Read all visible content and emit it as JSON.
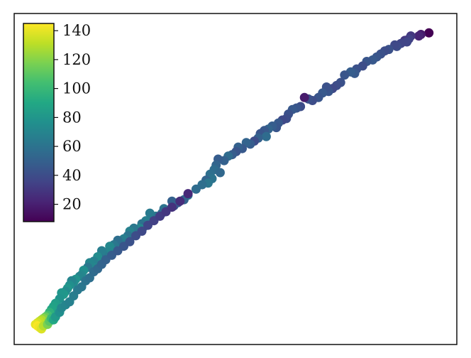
{
  "chart_data": {
    "type": "scatter",
    "title": "",
    "xlabel": "",
    "ylabel": "",
    "x_ticks_shown": false,
    "y_ticks_shown": false,
    "grid": false,
    "colormap": "viridis",
    "color_range": [
      8,
      145
    ],
    "colorbar": {
      "placement": "top-left (inset)",
      "ticks": [
        "20",
        "40",
        "60",
        "80",
        "100",
        "120",
        "140"
      ]
    },
    "series": [
      {
        "points": [
          [
            0.98,
            0.985,
            8
          ],
          [
            0.96,
            0.98,
            18
          ],
          [
            0.955,
            0.975,
            22
          ],
          [
            0.935,
            0.975,
            30
          ],
          [
            0.93,
            0.965,
            34
          ],
          [
            0.92,
            0.96,
            30
          ],
          [
            0.925,
            0.955,
            36
          ],
          [
            0.91,
            0.95,
            36
          ],
          [
            0.9,
            0.94,
            40
          ],
          [
            0.895,
            0.945,
            38
          ],
          [
            0.88,
            0.93,
            42
          ],
          [
            0.87,
            0.925,
            40
          ],
          [
            0.86,
            0.915,
            42
          ],
          [
            0.85,
            0.905,
            44
          ],
          [
            0.84,
            0.895,
            46
          ],
          [
            0.825,
            0.89,
            44
          ],
          [
            0.815,
            0.875,
            40
          ],
          [
            0.8,
            0.865,
            42
          ],
          [
            0.795,
            0.85,
            46
          ],
          [
            0.785,
            0.855,
            48
          ],
          [
            0.77,
            0.845,
            44
          ],
          [
            0.76,
            0.82,
            42
          ],
          [
            0.75,
            0.81,
            40
          ],
          [
            0.74,
            0.8,
            38
          ],
          [
            0.73,
            0.79,
            44
          ],
          [
            0.725,
            0.805,
            42
          ],
          [
            0.715,
            0.785,
            46
          ],
          [
            0.705,
            0.77,
            44
          ],
          [
            0.69,
            0.76,
            40
          ],
          [
            0.68,
            0.765,
            42
          ],
          [
            0.67,
            0.77,
            18
          ],
          [
            0.66,
            0.74,
            40
          ],
          [
            0.65,
            0.735,
            44
          ],
          [
            0.64,
            0.73,
            46
          ],
          [
            0.63,
            0.715,
            42
          ],
          [
            0.625,
            0.7,
            40
          ],
          [
            0.615,
            0.695,
            38
          ],
          [
            0.605,
            0.685,
            46
          ],
          [
            0.6,
            0.67,
            44
          ],
          [
            0.59,
            0.675,
            48
          ],
          [
            0.58,
            0.665,
            52
          ],
          [
            0.57,
            0.66,
            46
          ],
          [
            0.56,
            0.65,
            44
          ],
          [
            0.575,
            0.64,
            56
          ],
          [
            0.555,
            0.635,
            50
          ],
          [
            0.545,
            0.625,
            40
          ],
          [
            0.535,
            0.615,
            48
          ],
          [
            0.525,
            0.62,
            52
          ],
          [
            0.515,
            0.6,
            46
          ],
          [
            0.505,
            0.605,
            50
          ],
          [
            0.5,
            0.59,
            44
          ],
          [
            0.49,
            0.58,
            48
          ],
          [
            0.48,
            0.575,
            56
          ],
          [
            0.47,
            0.56,
            50
          ],
          [
            0.455,
            0.565,
            48
          ],
          [
            0.45,
            0.545,
            52
          ],
          [
            0.445,
            0.53,
            56
          ],
          [
            0.46,
            0.52,
            54
          ],
          [
            0.435,
            0.515,
            58
          ],
          [
            0.44,
            0.5,
            60
          ],
          [
            0.425,
            0.495,
            52
          ],
          [
            0.43,
            0.485,
            62
          ],
          [
            0.415,
            0.48,
            58
          ],
          [
            0.4,
            0.465,
            56
          ],
          [
            0.38,
            0.445,
            60
          ],
          [
            0.37,
            0.43,
            52
          ],
          [
            0.355,
            0.42,
            48
          ],
          [
            0.345,
            0.41,
            44
          ],
          [
            0.34,
            0.425,
            50
          ],
          [
            0.32,
            0.4,
            60
          ],
          [
            0.315,
            0.385,
            56
          ],
          [
            0.3,
            0.375,
            62
          ],
          [
            0.29,
            0.37,
            58
          ],
          [
            0.285,
            0.385,
            64
          ],
          [
            0.275,
            0.36,
            66
          ],
          [
            0.265,
            0.35,
            60
          ],
          [
            0.27,
            0.34,
            56
          ],
          [
            0.26,
            0.335,
            70
          ],
          [
            0.25,
            0.32,
            64
          ],
          [
            0.245,
            0.335,
            62
          ],
          [
            0.235,
            0.325,
            68
          ],
          [
            0.23,
            0.31,
            60
          ],
          [
            0.22,
            0.3,
            66
          ],
          [
            0.215,
            0.285,
            64
          ],
          [
            0.205,
            0.295,
            58
          ],
          [
            0.195,
            0.28,
            62
          ],
          [
            0.19,
            0.265,
            68
          ],
          [
            0.185,
            0.275,
            72
          ],
          [
            0.18,
            0.255,
            70
          ],
          [
            0.17,
            0.245,
            64
          ],
          [
            0.165,
            0.26,
            66
          ],
          [
            0.16,
            0.235,
            60
          ],
          [
            0.155,
            0.24,
            74
          ],
          [
            0.145,
            0.225,
            68
          ],
          [
            0.14,
            0.21,
            72
          ],
          [
            0.135,
            0.22,
            70
          ],
          [
            0.13,
            0.205,
            62
          ],
          [
            0.12,
            0.195,
            76
          ],
          [
            0.115,
            0.18,
            72
          ],
          [
            0.11,
            0.175,
            70
          ],
          [
            0.1,
            0.165,
            78
          ],
          [
            0.095,
            0.155,
            74
          ],
          [
            0.09,
            0.16,
            70
          ],
          [
            0.085,
            0.145,
            76
          ],
          [
            0.08,
            0.135,
            80
          ],
          [
            0.075,
            0.125,
            74
          ],
          [
            0.07,
            0.115,
            82
          ],
          [
            0.065,
            0.12,
            80
          ],
          [
            0.06,
            0.1,
            78
          ],
          [
            0.05,
            0.085,
            84
          ],
          [
            0.045,
            0.075,
            86
          ],
          [
            0.04,
            0.065,
            88
          ],
          [
            0.035,
            0.055,
            96
          ],
          [
            0.03,
            0.045,
            104
          ],
          [
            0.025,
            0.04,
            112
          ],
          [
            0.02,
            0.035,
            120
          ],
          [
            0.015,
            0.03,
            128
          ],
          [
            0.01,
            0.025,
            132
          ],
          [
            0.005,
            0.02,
            136
          ],
          [
            0.0,
            0.015,
            140
          ],
          [
            0.005,
            0.01,
            144
          ],
          [
            0.01,
            0.005,
            142
          ],
          [
            0.015,
            0.0,
            138
          ],
          [
            0.02,
            0.01,
            130
          ],
          [
            0.03,
            0.015,
            118
          ],
          [
            0.035,
            0.025,
            110
          ],
          [
            0.04,
            0.035,
            100
          ],
          [
            0.045,
            0.03,
            90
          ],
          [
            0.05,
            0.04,
            82
          ],
          [
            0.06,
            0.055,
            76
          ],
          [
            0.065,
            0.07,
            72
          ],
          [
            0.075,
            0.08,
            70
          ],
          [
            0.085,
            0.09,
            68
          ],
          [
            0.095,
            0.11,
            66
          ],
          [
            0.105,
            0.13,
            64
          ],
          [
            0.115,
            0.14,
            62
          ],
          [
            0.125,
            0.16,
            60
          ],
          [
            0.135,
            0.17,
            58
          ],
          [
            0.145,
            0.19,
            56
          ],
          [
            0.155,
            0.2,
            54
          ],
          [
            0.165,
            0.215,
            52
          ],
          [
            0.175,
            0.23,
            50
          ],
          [
            0.19,
            0.245,
            48
          ],
          [
            0.205,
            0.26,
            46
          ],
          [
            0.22,
            0.275,
            44
          ],
          [
            0.235,
            0.29,
            42
          ],
          [
            0.25,
            0.31,
            40
          ],
          [
            0.265,
            0.325,
            38
          ],
          [
            0.28,
            0.345,
            36
          ],
          [
            0.295,
            0.36,
            34
          ],
          [
            0.31,
            0.375,
            32
          ],
          [
            0.325,
            0.39,
            30
          ],
          [
            0.34,
            0.405,
            28
          ],
          [
            0.36,
            0.425,
            26
          ],
          [
            0.38,
            0.45,
            24
          ]
        ]
      }
    ]
  }
}
